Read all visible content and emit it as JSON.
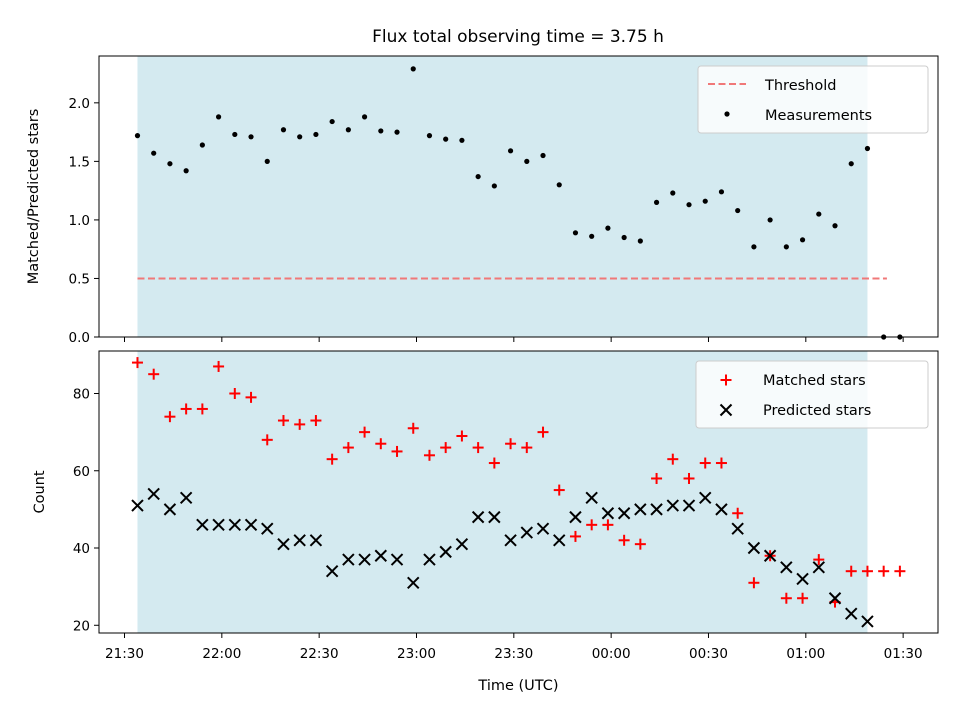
{
  "chart_data": [
    {
      "type": "scatter",
      "title": "Flux total observing time = 3.75 h",
      "xlabel": "",
      "ylabel": "Matched/Predicted stars",
      "ylim": [
        0,
        2.4
      ],
      "yticks": [
        "0.0",
        "0.5",
        "1.0",
        "1.5",
        "2.0"
      ],
      "shaded_interval": [
        "21:34",
        "01:19"
      ],
      "shade_color": "#d4eaf0",
      "legend": {
        "position": "top-right",
        "entries": [
          "Threshold",
          "Measurements"
        ]
      },
      "threshold": {
        "name": "Threshold",
        "value": 0.5,
        "x": [
          "21:34",
          "01:25"
        ],
        "style": "dashed",
        "color": "#f07878"
      },
      "series": [
        {
          "name": "Measurements",
          "marker": "dot",
          "color": "#000000",
          "x": [
            "21:34",
            "21:39",
            "21:44",
            "21:49",
            "21:54",
            "21:59",
            "22:04",
            "22:09",
            "22:14",
            "22:19",
            "22:24",
            "22:29",
            "22:34",
            "22:39",
            "22:44",
            "22:49",
            "22:54",
            "22:59",
            "23:04",
            "23:09",
            "23:14",
            "23:19",
            "23:24",
            "23:29",
            "23:34",
            "23:39",
            "23:44",
            "23:49",
            "23:54",
            "23:59",
            "00:04",
            "00:09",
            "00:14",
            "00:19",
            "00:24",
            "00:29",
            "00:34",
            "00:39",
            "00:44",
            "00:49",
            "00:54",
            "00:59",
            "01:04",
            "01:09",
            "01:14",
            "01:19",
            "01:24",
            "01:29"
          ],
          "y": [
            1.72,
            1.57,
            1.48,
            1.42,
            1.64,
            1.88,
            1.73,
            1.71,
            1.5,
            1.77,
            1.71,
            1.73,
            1.84,
            1.77,
            1.88,
            1.76,
            1.75,
            2.29,
            1.72,
            1.69,
            1.68,
            1.37,
            1.29,
            1.59,
            1.5,
            1.55,
            1.3,
            0.89,
            0.86,
            0.93,
            0.85,
            0.82,
            1.15,
            1.23,
            1.13,
            1.16,
            1.24,
            1.08,
            0.77,
            1.0,
            0.77,
            0.83,
            1.05,
            0.95,
            1.48,
            1.61,
            0.0,
            0.0
          ]
        }
      ]
    },
    {
      "type": "scatter",
      "title": "",
      "xlabel": "Time (UTC)",
      "ylabel": "Count",
      "ylim": [
        18,
        91
      ],
      "yticks": [
        "20",
        "40",
        "60",
        "80"
      ],
      "xticks": [
        "21:30",
        "22:00",
        "22:30",
        "23:00",
        "23:30",
        "00:00",
        "00:30",
        "01:00",
        "01:30"
      ],
      "shaded_interval": [
        "21:34",
        "01:19"
      ],
      "shade_color": "#d4eaf0",
      "legend": {
        "position": "top-right",
        "entries": [
          "Matched stars",
          "Predicted stars"
        ]
      },
      "series": [
        {
          "name": "Matched stars",
          "marker": "plus",
          "color": "#ff0000",
          "x": [
            "21:34",
            "21:39",
            "21:44",
            "21:49",
            "21:54",
            "21:59",
            "22:04",
            "22:09",
            "22:14",
            "22:19",
            "22:24",
            "22:29",
            "22:34",
            "22:39",
            "22:44",
            "22:49",
            "22:54",
            "22:59",
            "23:04",
            "23:09",
            "23:14",
            "23:19",
            "23:24",
            "23:29",
            "23:34",
            "23:39",
            "23:44",
            "23:49",
            "23:54",
            "23:59",
            "00:04",
            "00:09",
            "00:14",
            "00:19",
            "00:24",
            "00:29",
            "00:34",
            "00:39",
            "00:44",
            "00:49",
            "00:54",
            "00:59",
            "01:04",
            "01:09",
            "01:14",
            "01:19",
            "01:24",
            "01:29"
          ],
          "y": [
            88,
            85,
            74,
            76,
            76,
            87,
            80,
            79,
            68,
            73,
            72,
            73,
            63,
            66,
            70,
            67,
            65,
            71,
            64,
            66,
            69,
            66,
            62,
            67,
            66,
            70,
            55,
            43,
            46,
            46,
            42,
            41,
            58,
            63,
            58,
            62,
            62,
            49,
            31,
            38,
            27,
            27,
            37,
            26,
            34,
            34,
            34,
            34
          ]
        },
        {
          "name": "Predicted stars",
          "marker": "x",
          "color": "#000000",
          "x": [
            "21:34",
            "21:39",
            "21:44",
            "21:49",
            "21:54",
            "21:59",
            "22:04",
            "22:09",
            "22:14",
            "22:19",
            "22:24",
            "22:29",
            "22:34",
            "22:39",
            "22:44",
            "22:49",
            "22:54",
            "22:59",
            "23:04",
            "23:09",
            "23:14",
            "23:19",
            "23:24",
            "23:29",
            "23:34",
            "23:39",
            "23:44",
            "23:49",
            "23:54",
            "23:59",
            "00:04",
            "00:09",
            "00:14",
            "00:19",
            "00:24",
            "00:29",
            "00:34",
            "00:39",
            "00:44",
            "00:49",
            "00:54",
            "00:59",
            "01:04",
            "01:09",
            "01:14",
            "01:19"
          ],
          "y": [
            51,
            54,
            50,
            53,
            46,
            46,
            46,
            46,
            45,
            41,
            42,
            42,
            34,
            37,
            37,
            38,
            37,
            31,
            37,
            39,
            41,
            48,
            48,
            42,
            44,
            45,
            42,
            48,
            53,
            49,
            49,
            50,
            50,
            51,
            51,
            53,
            50,
            45,
            40,
            38,
            35,
            32,
            35,
            27,
            23,
            21
          ]
        }
      ]
    }
  ]
}
